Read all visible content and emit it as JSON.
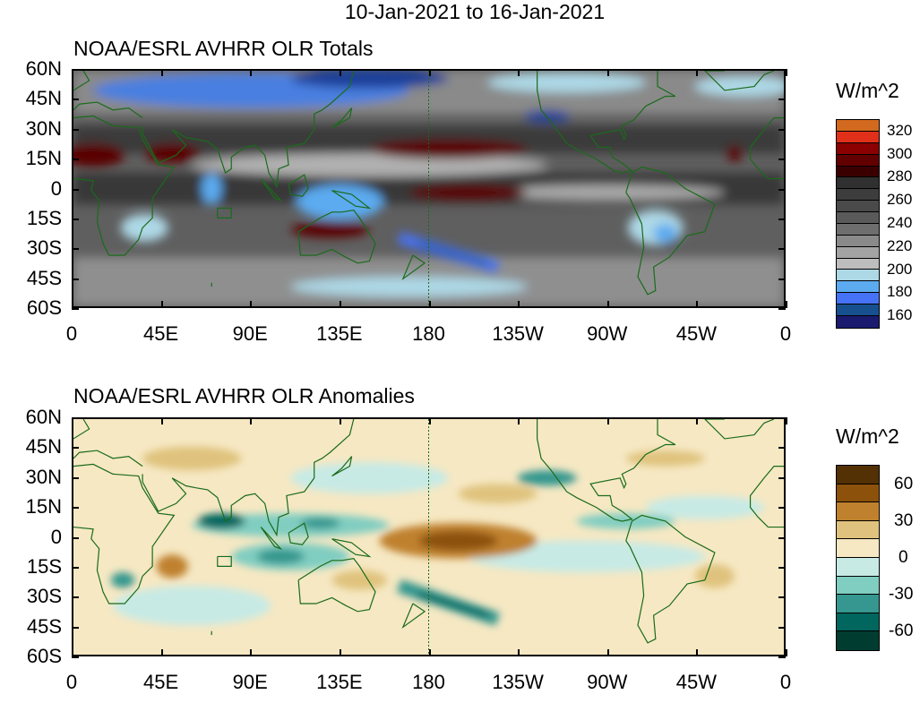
{
  "title": "10-Jan-2021 to 16-Jan-2021",
  "chart_data": [
    {
      "type": "heatmap",
      "title": "NOAA/ESRL AVHRR OLR Totals",
      "xticks": [
        "0",
        "45E",
        "90E",
        "135E",
        "180",
        "135W",
        "90W",
        "45W",
        "0"
      ],
      "yticks": [
        "60N",
        "45N",
        "30N",
        "15N",
        "0",
        "15S",
        "30S",
        "45S",
        "60S"
      ],
      "xlim": [
        0,
        360
      ],
      "ylim": [
        -60,
        60
      ],
      "colorbar": {
        "unit": "W/m^2",
        "labels": [
          "320",
          "300",
          "280",
          "260",
          "240",
          "220",
          "200",
          "180",
          "160"
        ],
        "colors": [
          "#d2691e",
          "#e0301a",
          "#8b0000",
          "#620000",
          "#3a0000",
          "#303030",
          "#3d3d3d",
          "#4a4a4a",
          "#5a5a5a",
          "#6e6e6e",
          "#8a8a8a",
          "#a3a3a3",
          "#bdbdbd",
          "#add8e6",
          "#5caaf0",
          "#4672f5",
          "#17508f",
          "#1a1a6e"
        ]
      }
    },
    {
      "type": "heatmap",
      "title": "NOAA/ESRL AVHRR OLR Anomalies",
      "xticks": [
        "0",
        "45E",
        "90E",
        "135E",
        "180",
        "135W",
        "90W",
        "45W",
        "0"
      ],
      "yticks": [
        "60N",
        "45N",
        "30N",
        "15N",
        "0",
        "15S",
        "30S",
        "45S",
        "60S"
      ],
      "xlim": [
        0,
        360
      ],
      "ylim": [
        -60,
        60
      ],
      "colorbar": {
        "unit": "W/m^2",
        "labels": [
          "60",
          "30",
          "0",
          "-30",
          "-60"
        ],
        "colors": [
          "#543005",
          "#8c510a",
          "#bf812d",
          "#dfc27d",
          "#f6e8c3",
          "#c7eae5",
          "#80cdc1",
          "#35978f",
          "#01665e",
          "#003c30"
        ]
      }
    }
  ]
}
